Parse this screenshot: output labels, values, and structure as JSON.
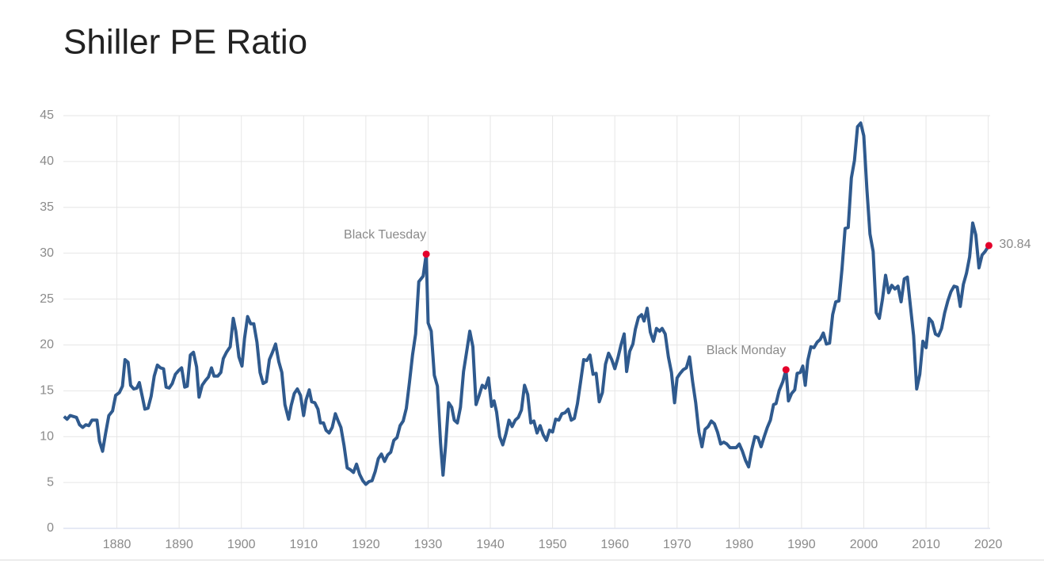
{
  "chart_data": {
    "type": "line",
    "title": "Shiller PE Ratio",
    "xlim": [
      1871.4,
      2020.3
    ],
    "ylim": [
      0,
      45
    ],
    "xticks": [
      1880,
      1890,
      1900,
      1910,
      1920,
      1930,
      1940,
      1950,
      1960,
      1970,
      1980,
      1990,
      2000,
      2010,
      2020
    ],
    "yticks": [
      0,
      5,
      10,
      15,
      20,
      25,
      30,
      35,
      40,
      45
    ],
    "grid": true,
    "series": [
      {
        "name": "Shiller PE Ratio",
        "color": "#2f5a8e",
        "x": [
          1871.5,
          1872,
          1872.5,
          1873.5,
          1874,
          1874.5,
          1875,
          1875.5,
          1876,
          1876.8,
          1877.2,
          1877.7,
          1878.2,
          1878.7,
          1879.3,
          1879.8,
          1880.4,
          1880.9,
          1881.3,
          1881.8,
          1882.2,
          1882.7,
          1883.2,
          1883.6,
          1884.1,
          1884.5,
          1885,
          1885.5,
          1886,
          1886.5,
          1887,
          1887.5,
          1887.9,
          1888.4,
          1888.9,
          1889.4,
          1889.9,
          1890.4,
          1890.9,
          1891.3,
          1891.8,
          1892.3,
          1892.8,
          1893.2,
          1893.7,
          1894.2,
          1894.7,
          1895.2,
          1895.6,
          1896.2,
          1896.7,
          1897.1,
          1897.6,
          1898.2,
          1898.7,
          1899.1,
          1899.6,
          1900.1,
          1900.5,
          1901,
          1901.5,
          1902,
          1902.5,
          1903,
          1903.5,
          1904,
          1904.5,
          1905,
          1905.5,
          1906,
          1906.5,
          1907,
          1907.6,
          1908,
          1908.5,
          1909,
          1909.5,
          1910,
          1910.4,
          1910.9,
          1911.3,
          1911.8,
          1912.3,
          1912.7,
          1913.2,
          1913.6,
          1914.1,
          1914.6,
          1915.1,
          1915.5,
          1916,
          1916.5,
          1917,
          1917.5,
          1918,
          1918.5,
          1919,
          1919.5,
          1920,
          1920.5,
          1921,
          1921.5,
          1922,
          1922.5,
          1923,
          1923.5,
          1924,
          1924.5,
          1925,
          1925.5,
          1926,
          1926.5,
          1927,
          1927.5,
          1928,
          1928.5,
          1929.2,
          1929.7,
          1930,
          1930.5,
          1931,
          1931.5,
          1932,
          1932.4,
          1932.8,
          1933.3,
          1933.8,
          1934.2,
          1934.7,
          1935.2,
          1935.7,
          1936.2,
          1936.7,
          1937.2,
          1937.7,
          1938.2,
          1938.7,
          1939.2,
          1939.7,
          1940.2,
          1940.6,
          1941,
          1941.5,
          1942,
          1942.5,
          1943,
          1943.5,
          1944,
          1944.5,
          1945,
          1945.5,
          1946,
          1946.5,
          1947,
          1947.5,
          1948,
          1948.5,
          1949,
          1949.5,
          1950,
          1950.5,
          1951,
          1951.5,
          1952,
          1952.5,
          1953,
          1953.5,
          1954,
          1954.5,
          1955,
          1955.5,
          1956,
          1956.5,
          1957,
          1957.5,
          1958,
          1958.5,
          1959,
          1959.5,
          1960,
          1960.5,
          1961,
          1961.5,
          1961.9,
          1962.4,
          1962.9,
          1963.3,
          1963.8,
          1964.3,
          1964.7,
          1965.2,
          1965.7,
          1966.2,
          1966.7,
          1967.2,
          1967.6,
          1968.1,
          1968.6,
          1969.1,
          1969.6,
          1970,
          1970.5,
          1971,
          1971.5,
          1972,
          1972.5,
          1973,
          1973.5,
          1974,
          1974.5,
          1975,
          1975.5,
          1976,
          1976.5,
          1977,
          1977.5,
          1978,
          1978.5,
          1979,
          1979.5,
          1980,
          1980.5,
          1981,
          1981.5,
          1982,
          1982.5,
          1983,
          1983.5,
          1984,
          1984.5,
          1985,
          1985.5,
          1985.9,
          1986.4,
          1987,
          1987.5,
          1987.9,
          1988.4,
          1988.9,
          1989.3,
          1989.8,
          1990.2,
          1990.6,
          1991,
          1991.5,
          1992,
          1992.5,
          1993,
          1993.5,
          1994,
          1994.5,
          1995,
          1995.5,
          1996,
          1996.5,
          1997,
          1997.5,
          1998,
          1998.5,
          1999,
          1999.5,
          2000,
          2000.5,
          2001,
          2001.5,
          2002,
          2002.5,
          2003,
          2003.5,
          2004,
          2004.5,
          2005,
          2005.5,
          2006,
          2006.5,
          2007,
          2007.5,
          2008,
          2008.5,
          2009,
          2009.5,
          2010,
          2010.5,
          2011,
          2011.5,
          2012,
          2012.5,
          2013,
          2013.5,
          2014,
          2014.5,
          2015,
          2015.5,
          2016,
          2016.5,
          2017,
          2017.5,
          2018,
          2018.5,
          2019,
          2019.5,
          2020.1
        ],
        "values": [
          12.2,
          11.9,
          12.3,
          12.1,
          11.3,
          11.0,
          11.3,
          11.2,
          11.8,
          11.8,
          9.5,
          8.4,
          10.4,
          12.3,
          12.8,
          14.5,
          14.8,
          15.5,
          18.4,
          18.1,
          15.6,
          15.2,
          15.3,
          15.9,
          14.3,
          13.0,
          13.1,
          14.4,
          16.6,
          17.8,
          17.5,
          17.4,
          15.4,
          15.3,
          15.8,
          16.8,
          17.2,
          17.5,
          15.4,
          15.5,
          18.9,
          19.2,
          17.6,
          14.3,
          15.6,
          16.1,
          16.5,
          17.5,
          16.6,
          16.6,
          17.0,
          18.5,
          19.2,
          19.8,
          22.9,
          21.5,
          18.7,
          17.7,
          20.7,
          23.1,
          22.3,
          22.3,
          20.3,
          17.0,
          15.8,
          16.0,
          18.4,
          19.2,
          20.1,
          18.2,
          17.0,
          13.5,
          11.9,
          13.4,
          14.7,
          15.2,
          14.5,
          12.3,
          14.0,
          15.1,
          13.8,
          13.7,
          13.0,
          11.5,
          11.5,
          10.7,
          10.4,
          11.0,
          12.5,
          11.8,
          11.0,
          9.0,
          6.6,
          6.4,
          6.1,
          7.0,
          5.9,
          5.2,
          4.8,
          5.1,
          5.2,
          6.2,
          7.6,
          8.1,
          7.3,
          8.0,
          8.3,
          9.6,
          9.9,
          11.2,
          11.7,
          13.1,
          15.9,
          18.9,
          21.2,
          26.9,
          27.5,
          29.9,
          22.4,
          21.5,
          16.7,
          15.5,
          9.3,
          5.8,
          9.0,
          13.7,
          13.2,
          11.8,
          11.5,
          13.2,
          17.1,
          19.3,
          21.5,
          19.8,
          13.5,
          14.5,
          15.6,
          15.3,
          16.4,
          13.3,
          13.9,
          12.7,
          10.0,
          9.1,
          10.3,
          11.8,
          11.1,
          11.8,
          12.1,
          12.9,
          15.6,
          14.6,
          11.5,
          11.7,
          10.4,
          11.2,
          10.2,
          9.6,
          10.7,
          10.5,
          11.9,
          11.8,
          12.5,
          12.6,
          13.0,
          11.8,
          12.0,
          13.6,
          16.0,
          18.4,
          18.3,
          18.9,
          16.8,
          16.9,
          13.8,
          14.8,
          17.9,
          19.1,
          18.4,
          17.4,
          18.6,
          20.0,
          21.2,
          17.1,
          19.3,
          20.1,
          21.7,
          23.0,
          23.3,
          22.6,
          24.0,
          21.4,
          20.4,
          21.8,
          21.5,
          21.8,
          21.2,
          18.7,
          17.0,
          13.7,
          16.4,
          16.9,
          17.3,
          17.5,
          18.7,
          16.0,
          13.7,
          10.5,
          8.9,
          10.8,
          11.1,
          11.7,
          11.4,
          10.5,
          9.2,
          9.4,
          9.2,
          8.8,
          8.8,
          8.8,
          9.2,
          8.4,
          7.4,
          6.7,
          8.6,
          10.0,
          9.9,
          8.9,
          10.0,
          11.0,
          11.8,
          13.5,
          13.6,
          15.0,
          16.0,
          17.3,
          13.9,
          14.7,
          15.1,
          16.9,
          17.0,
          17.7,
          15.6,
          18.3,
          19.8,
          19.7,
          20.3,
          20.6,
          21.3,
          20.1,
          20.2,
          23.3,
          24.7,
          24.8,
          28.3,
          32.7,
          32.8,
          38.2,
          40.1,
          43.8,
          44.2,
          42.8,
          37.0,
          32.1,
          30.2,
          23.5,
          22.9,
          25.0,
          27.6,
          25.7,
          26.5,
          26.1,
          26.4,
          24.7,
          27.2,
          27.4,
          24.2,
          21.0,
          15.2,
          16.8,
          20.4,
          19.7,
          22.9,
          22.5,
          21.2,
          21.0,
          21.8,
          23.5,
          24.8,
          25.8,
          26.4,
          26.3,
          24.2,
          26.6,
          27.8,
          29.6,
          33.3,
          32.0,
          28.4,
          29.8,
          30.2,
          30.84
        ]
      }
    ],
    "annotations": [
      {
        "text": "Black Tuesday",
        "x": 1929.7,
        "y": 29.9,
        "color": "#e4002b",
        "position": "above-left"
      },
      {
        "text": "Black Monday",
        "x": 1987.5,
        "y": 17.3,
        "color": "#e4002b",
        "position": "above-left"
      },
      {
        "text": "30.84",
        "x": 2020.1,
        "y": 30.84,
        "color": "#e4002b",
        "position": "right"
      }
    ]
  }
}
